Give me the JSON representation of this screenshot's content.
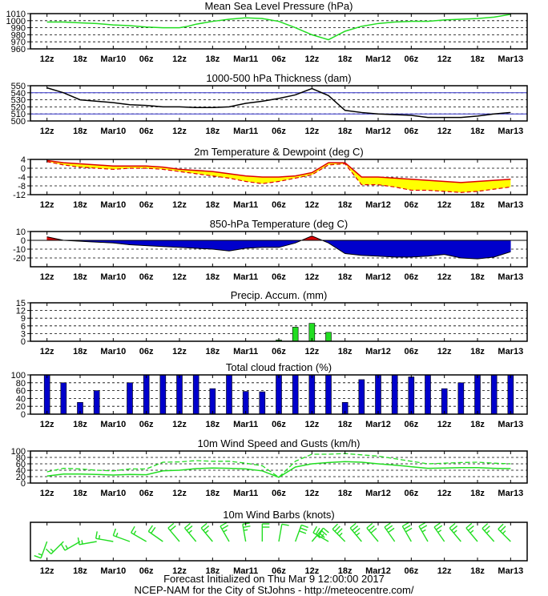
{
  "x_ticks": [
    "12z",
    "18z",
    "Mar10",
    "06z",
    "12z",
    "18z",
    "Mar11",
    "06z",
    "12z",
    "18z",
    "Mar12",
    "06z",
    "12z",
    "18z",
    "Mar13"
  ],
  "footer": {
    "line1": "Forecast Initialized on Thu Mar  9 12:00:00 2017",
    "line2": "NCEP-NAM for the City of StJohns - http://meteocentre.com/"
  },
  "colors": {
    "pressure": "#22dd22",
    "thickness": "#000000",
    "thickness_ref": "#3333cc",
    "temp": "#dd0000",
    "dew_fill": "#ffff00",
    "dew_line": "#dd0000",
    "t850_warm": "#dd0000",
    "t850_cold": "#0000cc",
    "precip": "#22dd22",
    "cloud": "#0000cc",
    "wind": "#22dd22",
    "barb": "#22dd22"
  },
  "chart_data": [
    {
      "id": "pressure",
      "type": "line",
      "title": "Mean Sea Level Pressure (hPa)",
      "ylim": [
        960,
        1010
      ],
      "yticks": [
        960,
        970,
        980,
        990,
        1000,
        1010
      ],
      "x": [
        0,
        1,
        2,
        3,
        4,
        5,
        6,
        7,
        8,
        8.5,
        9,
        10,
        11,
        12,
        13,
        14,
        15,
        16,
        17,
        18,
        19,
        20,
        21,
        22,
        23,
        24,
        25,
        26,
        27,
        28
      ],
      "series": [
        {
          "values": [
            998,
            998,
            997,
            996,
            994,
            993,
            991,
            990,
            990,
            992,
            995,
            999,
            1002,
            1004,
            1003,
            999,
            990,
            980,
            973,
            985,
            992,
            996,
            998,
            999,
            999,
            1001,
            1002,
            1003,
            1005,
            1009
          ]
        }
      ]
    },
    {
      "id": "thickness",
      "type": "line",
      "title": "1000-500 hPa Thickness (dam)",
      "ylim": [
        500,
        550
      ],
      "yticks": [
        500,
        510,
        520,
        530,
        540,
        550
      ],
      "ref_lines": [
        510,
        540
      ],
      "x": [
        0,
        1,
        2,
        3,
        4,
        5,
        6,
        7,
        8,
        9,
        10,
        11,
        12,
        13,
        14,
        15,
        16,
        17,
        18,
        19,
        20,
        21,
        22,
        23,
        24,
        25,
        26,
        27,
        28
      ],
      "series": [
        {
          "values": [
            547,
            540,
            530,
            528,
            526,
            523,
            522,
            520,
            520,
            519,
            519,
            520,
            525,
            528,
            532,
            537,
            546,
            536,
            515,
            512,
            510,
            509,
            508,
            505,
            505,
            505,
            507,
            510,
            512
          ]
        }
      ]
    },
    {
      "id": "temp",
      "type": "area",
      "title": "2m Temperature & Dewpoint (deg C)",
      "ylim": [
        -12,
        4
      ],
      "yticks": [
        -12,
        -8,
        -4,
        0,
        4
      ],
      "x": [
        0,
        1,
        2,
        3,
        4,
        5,
        6,
        7,
        8,
        9,
        10,
        11,
        12,
        13,
        14,
        15,
        16,
        17,
        18,
        19,
        20,
        21,
        22,
        23,
        24,
        25,
        26,
        27,
        28
      ],
      "series": [
        {
          "values": [
            3.5,
            2.5,
            2,
            1.5,
            1,
            1,
            1,
            0.5,
            -0.5,
            -1,
            -1.5,
            -2.5,
            -3.5,
            -4,
            -4,
            -3.5,
            -2,
            2.5,
            2.5,
            -4,
            -4,
            -4.5,
            -5,
            -5.5,
            -6,
            -6.5,
            -6,
            -5.5,
            -5
          ]
        },
        {
          "values": [
            3,
            1.5,
            0.5,
            0,
            -0.5,
            0,
            0,
            -0.5,
            -1.5,
            -2.5,
            -3.5,
            -4.5,
            -6,
            -7,
            -6,
            -4.5,
            -3,
            1.5,
            2,
            -7.5,
            -7.5,
            -8.5,
            -10,
            -10,
            -10.5,
            -11,
            -10.5,
            -9.5,
            -8.5
          ]
        }
      ]
    },
    {
      "id": "t850",
      "type": "area",
      "title": "850-hPa Temperature (deg C)",
      "ylim": [
        -30,
        10
      ],
      "yticks": [
        -20,
        -10,
        0,
        10
      ],
      "x": [
        0,
        1,
        2,
        3,
        4,
        5,
        6,
        7,
        8,
        9,
        10,
        11,
        12,
        13,
        14,
        15,
        16,
        17,
        18,
        19,
        20,
        21,
        22,
        23,
        24,
        25,
        26,
        27,
        28
      ],
      "series": [
        {
          "values": [
            4,
            0,
            -1,
            -2,
            -3,
            -5,
            -6,
            -7,
            -8,
            -9,
            -10,
            -12,
            -9,
            -8,
            -8,
            -3,
            5,
            -3,
            -15,
            -17,
            -18,
            -19,
            -19,
            -18,
            -16,
            -20,
            -21,
            -19,
            -13
          ]
        }
      ]
    },
    {
      "id": "precip",
      "type": "bar",
      "title": "Precip. Accum. (mm)",
      "ylim": [
        0,
        15
      ],
      "yticks": [
        0,
        3,
        6,
        9,
        12,
        15
      ],
      "x": [
        14,
        15,
        16,
        17
      ],
      "values": [
        0.5,
        5.5,
        7,
        3.5
      ]
    },
    {
      "id": "cloud",
      "type": "bar",
      "title": "Total cloud fraction (%)",
      "ylim": [
        0,
        100
      ],
      "yticks": [
        0,
        20,
        40,
        60,
        80,
        100
      ],
      "x": [
        0,
        1,
        2,
        3,
        5,
        6,
        7,
        8,
        9,
        10,
        11,
        12,
        13,
        14,
        15,
        16,
        17,
        18,
        19,
        20,
        21,
        22,
        23,
        24,
        25,
        26,
        27,
        28
      ],
      "values": [
        100,
        80,
        30,
        60,
        80,
        100,
        100,
        100,
        100,
        65,
        100,
        58,
        57,
        100,
        100,
        100,
        100,
        30,
        88,
        100,
        100,
        95,
        100,
        65,
        80,
        100,
        100,
        100
      ]
    },
    {
      "id": "wind",
      "type": "line",
      "title": "10m Wind Speed and Gusts (km/h)",
      "ylim": [
        0,
        100
      ],
      "yticks": [
        0,
        20,
        40,
        60,
        80,
        100
      ],
      "x": [
        0,
        1,
        2,
        3,
        4,
        5,
        6,
        7,
        8,
        9,
        10,
        11,
        12,
        13,
        14,
        15,
        16,
        17,
        18,
        19,
        20,
        21,
        22,
        23,
        24,
        25,
        26,
        27,
        28
      ],
      "series": [
        {
          "values": [
            22,
            28,
            28,
            27,
            25,
            27,
            26,
            38,
            40,
            45,
            47,
            46,
            44,
            38,
            18,
            50,
            60,
            64,
            67,
            65,
            60,
            56,
            51,
            46,
            47,
            48,
            48,
            46,
            45
          ]
        },
        {
          "values": [
            35,
            46,
            44,
            40,
            38,
            44,
            44,
            65,
            66,
            70,
            68,
            68,
            62,
            54,
            18,
            68,
            90,
            90,
            92,
            88,
            84,
            76,
            68,
            60,
            62,
            64,
            65,
            62,
            60
          ]
        }
      ]
    },
    {
      "id": "barbs",
      "type": "scatter",
      "title": "10m Wind Barbs  (knots)",
      "x": [
        0,
        1,
        2,
        3,
        4,
        5,
        6,
        7,
        8,
        9,
        10,
        11,
        12,
        13,
        14,
        15,
        16,
        17,
        18,
        19,
        20,
        21,
        22,
        23,
        24,
        25,
        26,
        27,
        28
      ],
      "direction_deg": [
        200,
        225,
        240,
        260,
        280,
        290,
        300,
        305,
        320,
        320,
        320,
        330,
        350,
        360,
        10,
        20,
        40,
        300,
        315,
        320,
        320,
        325,
        330,
        330,
        325,
        320,
        320,
        318,
        315
      ],
      "speed_kt": [
        15,
        15,
        15,
        15,
        15,
        15,
        15,
        20,
        20,
        25,
        25,
        25,
        25,
        20,
        10,
        30,
        35,
        35,
        35,
        35,
        30,
        30,
        30,
        25,
        25,
        25,
        25,
        25,
        25
      ]
    }
  ]
}
